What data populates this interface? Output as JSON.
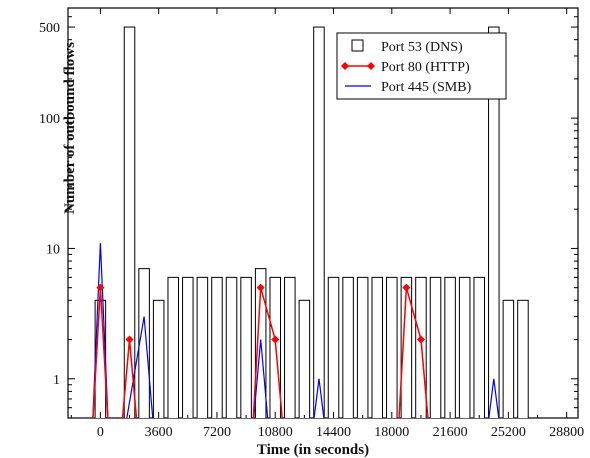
{
  "chart_data": {
    "type": "bar",
    "title": "",
    "xlabel": "Time (in seconds)",
    "ylabel": "Number of outbound flows",
    "yscale": "log",
    "xlim": [
      -2000,
      29500
    ],
    "ylim": [
      0.5,
      700
    ],
    "grid": false,
    "legend_position": "top-right",
    "x_ticks": [
      0,
      3600,
      7200,
      10800,
      14400,
      18000,
      21600,
      25200,
      28800
    ],
    "x_tick_labels": [
      "0",
      "3600",
      "7200",
      "10800",
      "14400",
      "18000",
      "21600",
      "25200",
      "28800"
    ],
    "y_ticks": [
      1,
      10,
      100,
      500
    ],
    "y_tick_labels": [
      "1",
      "10",
      "100",
      "500"
    ],
    "bar_width": 650,
    "series": [
      {
        "name": "Port 53 (DNS)",
        "style": "bar",
        "color": "#000000",
        "x": [
          0,
          1800,
          2700,
          3600,
          4500,
          5400,
          6300,
          7200,
          8100,
          9000,
          9900,
          10800,
          11700,
          12600,
          13500,
          14400,
          15300,
          16200,
          17100,
          18000,
          18900,
          19800,
          20700,
          21600,
          22500,
          23400,
          24300,
          25200,
          26100
        ],
        "values": [
          4,
          500,
          7,
          4,
          6,
          6,
          6,
          6,
          6,
          6,
          7,
          6,
          6,
          4,
          500,
          6,
          6,
          6,
          6,
          6,
          6,
          6,
          6,
          6,
          6,
          6,
          500,
          4,
          4
        ]
      },
      {
        "name": "Port 80 (HTTP)",
        "style": "line-marker",
        "color": "#ff0000",
        "segments": [
          {
            "x": [
              -500,
              0,
              500
            ],
            "y": [
              0.4,
              5,
              0.4
            ]
          },
          {
            "x": [
              1300,
              1800,
              2300
            ],
            "y": [
              0.4,
              2,
              0.4
            ]
          },
          {
            "x": [
              9400,
              9900,
              10800,
              11300
            ],
            "y": [
              0.4,
              5,
              2,
              0.4
            ]
          },
          {
            "x": [
              18400,
              18900,
              19800,
              20300
            ],
            "y": [
              0.4,
              5,
              2,
              0.4
            ]
          }
        ],
        "markers": {
          "x": [
            0,
            1800,
            9900,
            10800,
            18900,
            19800
          ],
          "y": [
            5,
            2,
            5,
            2,
            5,
            2
          ]
        }
      },
      {
        "name": "Port 445 (SMB)",
        "style": "line",
        "color": "#0000ff",
        "segments": [
          {
            "x": [
              -500,
              0,
              500
            ],
            "y": [
              0.4,
              11,
              0.4
            ]
          },
          {
            "x": [
              1500,
              2700,
              3300
            ],
            "y": [
              0.4,
              3,
              0.4
            ]
          },
          {
            "x": [
              9400,
              9900,
              10400
            ],
            "y": [
              0.4,
              2,
              0.4
            ]
          },
          {
            "x": [
              13100,
              13500,
              13900
            ],
            "y": [
              0.4,
              1,
              0.4
            ]
          },
          {
            "x": [
              23900,
              24300,
              24700
            ],
            "y": [
              0.4,
              1,
              0.4
            ]
          }
        ]
      }
    ]
  }
}
